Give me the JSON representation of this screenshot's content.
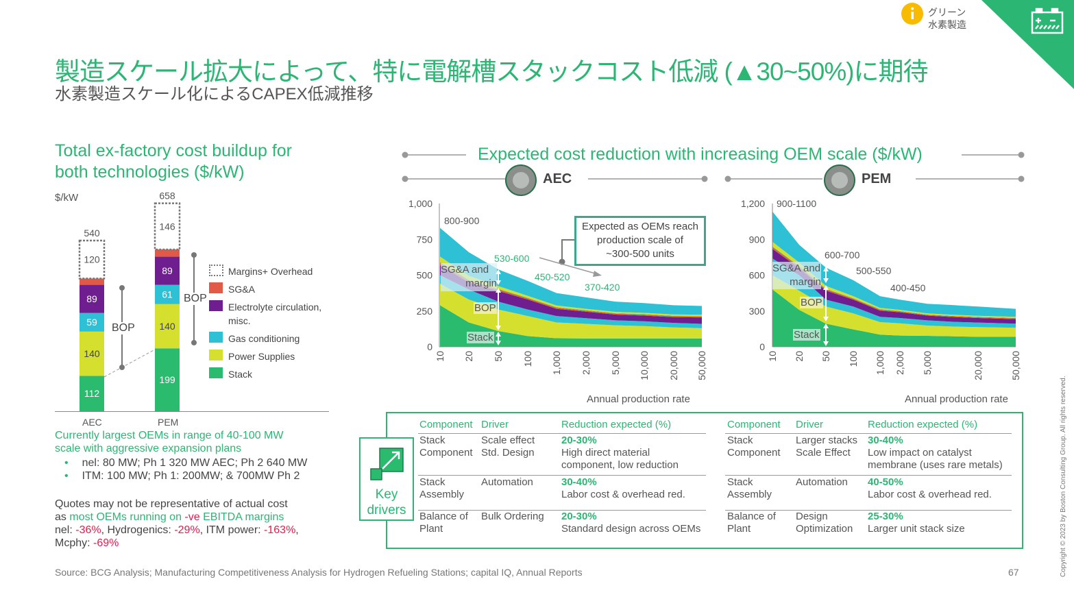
{
  "header": {
    "title": "製造スケール拡大によって、特に電解槽スタックコスト低減 (▲30~50%)に期待",
    "subtitle": "水素製造スケール化によるCAPEX低減推移",
    "category_line1": "グリーン",
    "category_line2": "水素製造",
    "info_icon": "info-icon",
    "battery_icon": "battery-icon",
    "accent_color": "#2bb673"
  },
  "left": {
    "title_line1": "Total ex-factory cost buildup for",
    "title_line2": "both technologies ($/kW)",
    "bop_label": "BOP",
    "note_line1": "Currently largest OEMs in range of 40-100 MW",
    "note_line2": "scale with aggressive expansion plans",
    "bullets": [
      "nel: 80 MW; Ph 1 320 MW AEC; Ph 2 640 MW",
      "ITM: 100 MW; Ph 1: 200MW; & 700MW Ph 2"
    ],
    "quote_line1": "Quotes may not be representative of actual cost",
    "quote_as": "as ",
    "quote_green": "most OEMs running on ",
    "quote_red": "-ve",
    "quote_green2": " EBITDA margins",
    "margins": [
      {
        "name": "nel: ",
        "value": "-36%",
        "sep": ", "
      },
      {
        "name": "Hydrogenics: ",
        "value": "-29%",
        "sep": ", "
      },
      {
        "name": "ITM power: ",
        "value": "-163%",
        "sep": ","
      },
      {
        "name": "Mcphy: ",
        "value": "-69%",
        "sep": ""
      }
    ]
  },
  "right": {
    "title": "Expected cost reduction with increasing OEM scale ($/kW)",
    "aec_label": "AEC",
    "pem_label": "PEM",
    "callout_line1": "Expected as OEMs reach",
    "callout_line2": "production scale of",
    "callout_line3": "~300-500 units",
    "overlay_sga": "SG&A and",
    "overlay_margin": "margin",
    "overlay_bop": "BOP",
    "overlay_stack": "Stack"
  },
  "chart_data": [
    {
      "type": "bar",
      "stacked": true,
      "ylabel": "$/kW",
      "categories": [
        "AEC",
        "PEM"
      ],
      "totals": [
        540,
        658
      ],
      "series": [
        {
          "name": "Stack",
          "color": "#2bbb6f",
          "values": [
            112,
            199
          ]
        },
        {
          "name": "Power Supplies",
          "color": "#d4df2e",
          "values": [
            140,
            140
          ]
        },
        {
          "name": "Gas conditioning",
          "color": "#2ec1d6",
          "values": [
            59,
            61
          ]
        },
        {
          "name": "Electrolyte circulation, misc.",
          "color": "#6e1e8f",
          "values": [
            89,
            89
          ]
        },
        {
          "name": "SG&A",
          "color": "#e05a47",
          "values": [
            20,
            23
          ]
        },
        {
          "name": "Margins+ Overhead",
          "color": "#ffffff",
          "values": [
            120,
            146
          ]
        }
      ],
      "legend": "right"
    },
    {
      "type": "area",
      "stacked": true,
      "title": "AEC",
      "xlabel": "Annual production rate",
      "x": [
        "10",
        "20",
        "50",
        "100",
        "1,000",
        "2,000",
        "5,000",
        "10,000",
        "20,000",
        "50,000"
      ],
      "yticks": [
        "0",
        "250",
        "500",
        "750",
        "1,000"
      ],
      "ylim": [
        0,
        1000
      ],
      "series": [
        {
          "color": "#2bbb6f",
          "values": [
            290,
            170,
            110,
            75,
            60,
            58,
            58,
            58,
            58,
            58
          ]
        },
        {
          "color": "#d4df2e",
          "values": [
            150,
            160,
            150,
            140,
            110,
            102,
            92,
            87,
            77,
            72
          ]
        },
        {
          "color": "#2ec1d6",
          "values": [
            60,
            70,
            55,
            45,
            45,
            40,
            35,
            33,
            32,
            30
          ]
        },
        {
          "color": "#6e1e8f",
          "values": [
            70,
            50,
            75,
            70,
            50,
            45,
            40,
            40,
            40,
            45
          ]
        },
        {
          "color": "#e05a47",
          "values": [
            15,
            12,
            10,
            8,
            8,
            7,
            6,
            6,
            6,
            6
          ]
        },
        {
          "color": "#2bbb6f",
          "values": [
            5,
            4,
            4,
            3,
            3,
            3,
            3,
            3,
            3,
            3
          ]
        },
        {
          "color": "#d4df2e",
          "values": [
            40,
            30,
            20,
            15,
            12,
            10,
            10,
            10,
            10,
            10
          ]
        },
        {
          "color": "#2ec1d6",
          "values": [
            200,
            164,
            116,
            104,
            87,
            80,
            71,
            68,
            64,
            61
          ]
        }
      ],
      "annotations": [
        {
          "text": "800-900",
          "color": "#555555"
        },
        {
          "text": "530-600",
          "color": "#2bb673"
        },
        {
          "text": "450-520",
          "color": "#2bb673"
        },
        {
          "text": "370-420",
          "color": "#2bb673"
        }
      ]
    },
    {
      "type": "area",
      "stacked": true,
      "title": "PEM",
      "xlabel": "Annual production rate",
      "x": [
        "10",
        "20",
        "50",
        "100",
        "1,000",
        "2,000",
        "5,000",
        "",
        "20,000",
        "50,000"
      ],
      "yticks": [
        "0",
        "300",
        "600",
        "900",
        "1,200"
      ],
      "ylim": [
        0,
        1200
      ],
      "series": [
        {
          "color": "#2bbb6f",
          "values": [
            481,
            309,
            194,
            146,
            102,
            94,
            92,
            88,
            84,
            84
          ]
        },
        {
          "color": "#d4df2e",
          "values": [
            119,
            161,
            143,
            134,
            105,
            103,
            86,
            82,
            81,
            75
          ]
        },
        {
          "color": "#2ec1d6",
          "values": [
            140,
            130,
            58,
            57,
            44,
            44,
            44,
            40,
            38,
            35
          ]
        },
        {
          "color": "#6e1e8f",
          "values": [
            80,
            60,
            76,
            58,
            52,
            48,
            39,
            40,
            38,
            38
          ]
        },
        {
          "color": "#e05a47",
          "values": [
            15,
            12,
            10,
            8,
            8,
            7,
            6,
            6,
            6,
            6
          ]
        },
        {
          "color": "#2bbb6f",
          "values": [
            5,
            4,
            4,
            3,
            3,
            3,
            3,
            3,
            3,
            3
          ]
        },
        {
          "color": "#d4df2e",
          "values": [
            40,
            30,
            25,
            18,
            12,
            10,
            10,
            10,
            10,
            10
          ]
        },
        {
          "color": "#2ec1d6",
          "values": [
            253,
            149,
            153,
            134,
            98,
            86,
            80,
            81,
            77,
            67
          ]
        }
      ],
      "annotations": [
        {
          "text": "900-1100",
          "color": "#555555"
        },
        {
          "text": "600-700",
          "color": "#555555"
        },
        {
          "text": "500-550",
          "color": "#555555"
        },
        {
          "text": "400-450",
          "color": "#555555"
        }
      ]
    }
  ],
  "drivers": {
    "label_line1": "Key",
    "label_line2": "drivers",
    "headers": [
      "Component",
      "Driver",
      "Reduction expected (%)"
    ],
    "aec_rows": [
      {
        "component": [
          "Stack",
          "Component"
        ],
        "driver": [
          "Scale effect",
          "Std. Design"
        ],
        "pct": "20-30%",
        "desc": [
          "High direct material",
          "component, low reduction"
        ]
      },
      {
        "component": [
          "Stack",
          "Assembly"
        ],
        "driver": [
          "Automation",
          ""
        ],
        "pct": "30-40%",
        "desc": [
          "Labor cost & overhead red.",
          ""
        ]
      },
      {
        "component": [
          "Balance of",
          "Plant"
        ],
        "driver": [
          "Bulk Ordering",
          ""
        ],
        "pct": "20-30%",
        "desc": [
          "Standard design across OEMs",
          ""
        ]
      }
    ],
    "pem_rows": [
      {
        "component": [
          "Stack",
          "Component"
        ],
        "driver": [
          "Larger stacks",
          "Scale Effect"
        ],
        "pct": "30-40%",
        "desc": [
          "Low impact on catalyst",
          "membrane (uses rare metals)"
        ]
      },
      {
        "component": [
          "Stack",
          "Assembly"
        ],
        "driver": [
          "Automation",
          ""
        ],
        "pct": "40-50%",
        "desc": [
          "Labor cost & overhead red.",
          ""
        ]
      },
      {
        "component": [
          "Balance of",
          "Plant"
        ],
        "driver": [
          "Design",
          "Optimization"
        ],
        "pct": "25-30%",
        "desc": [
          "Larger unit stack size",
          ""
        ]
      }
    ]
  },
  "footer": {
    "source": "Source: BCG Analysis; Manufacturing Competitiveness Analysis for Hydrogen Refueling Stations; capital IQ, Annual Reports",
    "page": "67",
    "copyright": "Copyright © 2023 by Boston Consulting Group. All rights reserved."
  }
}
